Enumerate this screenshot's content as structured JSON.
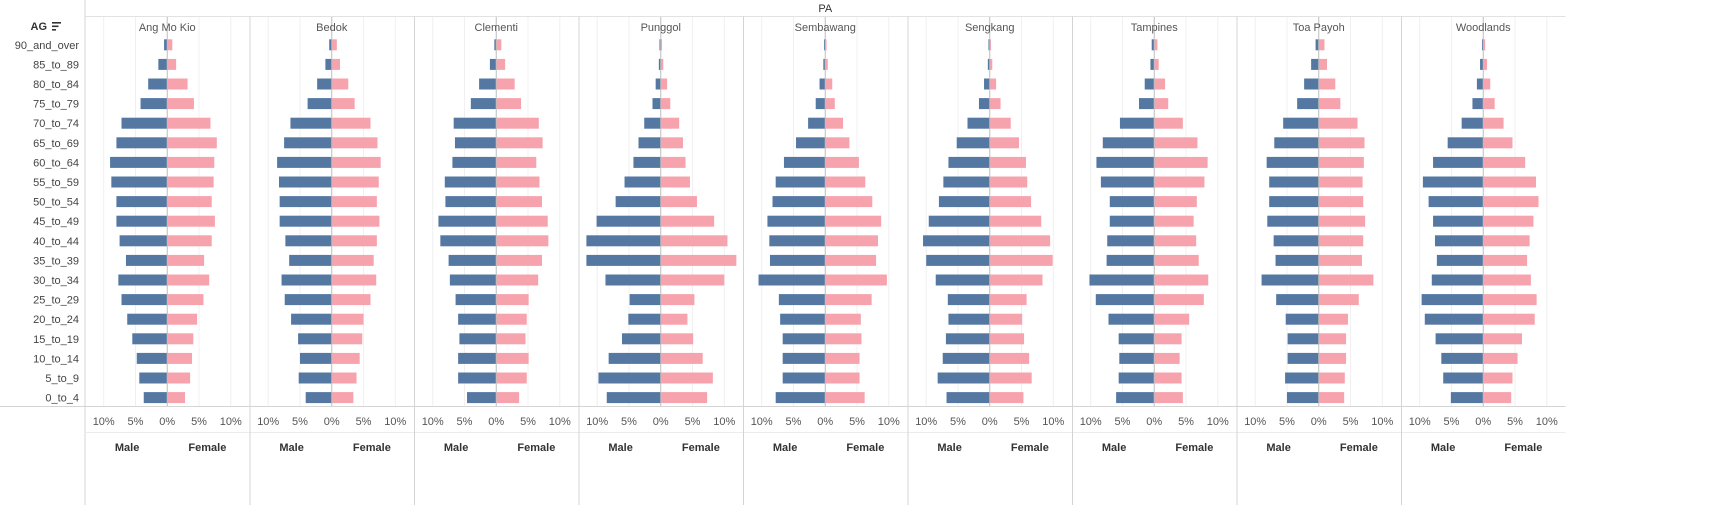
{
  "header": {
    "column_field": "PA",
    "row_field": "AG",
    "sort_icon": "sort-descending-icon"
  },
  "chart_data": {
    "type": "bar",
    "subtype": "population-pyramid",
    "axis_ticks": [
      "10%",
      "5%",
      "0%",
      "5%",
      "10%"
    ],
    "xlim_percent": [
      -12,
      12
    ],
    "side_labels": {
      "male": "Male",
      "female": "Female"
    },
    "colors": {
      "male": "#5578a3",
      "female": "#f7a3ad"
    },
    "age_groups": [
      "90_and_over",
      "85_to_89",
      "80_to_84",
      "75_to_79",
      "70_to_74",
      "65_to_69",
      "60_to_64",
      "55_to_59",
      "50_to_54",
      "45_to_49",
      "40_to_44",
      "35_to_39",
      "30_to_34",
      "25_to_29",
      "20_to_24",
      "15_to_19",
      "10_to_14",
      "5_to_9",
      "0_to_4"
    ],
    "panels": [
      {
        "pa": "Ang Mo Kio",
        "male": [
          0.5,
          1.4,
          3.0,
          4.2,
          7.2,
          8.0,
          9.0,
          8.8,
          8.0,
          8.0,
          7.5,
          6.5,
          7.7,
          7.2,
          6.3,
          5.5,
          4.8,
          4.4,
          3.7
        ],
        "female": [
          0.8,
          1.4,
          3.2,
          4.2,
          6.8,
          7.8,
          7.4,
          7.3,
          7.0,
          7.5,
          7.0,
          5.8,
          6.6,
          5.7,
          4.7,
          4.1,
          3.9,
          3.6,
          2.8
        ]
      },
      {
        "pa": "Bedok",
        "male": [
          0.4,
          1.0,
          2.3,
          3.8,
          6.5,
          7.5,
          8.6,
          8.3,
          8.2,
          8.2,
          7.3,
          6.7,
          7.9,
          7.4,
          6.4,
          5.3,
          5.0,
          5.2,
          4.1
        ],
        "female": [
          0.8,
          1.3,
          2.6,
          3.6,
          6.1,
          7.2,
          7.7,
          7.4,
          7.1,
          7.5,
          7.1,
          6.6,
          7.0,
          6.1,
          5.0,
          4.8,
          4.4,
          3.9,
          3.4
        ]
      },
      {
        "pa": "Clementi",
        "male": [
          0.3,
          1.0,
          2.7,
          4.0,
          6.7,
          6.5,
          6.9,
          8.1,
          8.0,
          9.1,
          8.8,
          7.5,
          7.3,
          6.4,
          6.0,
          5.8,
          6.0,
          6.0,
          4.6
        ],
        "female": [
          0.8,
          1.4,
          2.9,
          3.9,
          6.7,
          7.3,
          6.3,
          6.8,
          7.2,
          8.1,
          8.2,
          7.2,
          6.6,
          5.1,
          4.8,
          4.6,
          5.1,
          4.8,
          3.6
        ]
      },
      {
        "pa": "Punggol",
        "male": [
          0.2,
          0.3,
          0.8,
          1.3,
          2.6,
          3.5,
          4.3,
          5.7,
          7.1,
          10.1,
          11.7,
          11.7,
          8.7,
          4.9,
          5.1,
          6.1,
          8.2,
          9.8,
          8.5
        ],
        "female": [
          0.2,
          0.4,
          1.0,
          1.5,
          2.9,
          3.5,
          3.9,
          4.6,
          5.7,
          8.4,
          10.5,
          11.9,
          10.0,
          5.3,
          4.2,
          5.1,
          6.6,
          8.2,
          7.3
        ]
      },
      {
        "pa": "Sembawang",
        "male": [
          0.2,
          0.3,
          0.9,
          1.5,
          2.7,
          4.6,
          6.5,
          7.8,
          8.3,
          9.1,
          8.8,
          8.7,
          10.5,
          7.3,
          7.1,
          6.7,
          6.7,
          6.7,
          7.8
        ],
        "female": [
          0.2,
          0.4,
          1.1,
          1.5,
          2.8,
          3.8,
          5.3,
          6.3,
          7.4,
          8.8,
          8.3,
          8.0,
          9.7,
          7.3,
          5.6,
          5.7,
          5.4,
          5.4,
          6.2
        ]
      },
      {
        "pa": "Sengkang",
        "male": [
          0.2,
          0.3,
          0.9,
          1.7,
          3.5,
          5.2,
          6.5,
          7.3,
          8.0,
          9.6,
          10.5,
          10.0,
          8.5,
          6.6,
          6.5,
          6.9,
          7.4,
          8.2,
          6.8
        ],
        "female": [
          0.2,
          0.4,
          1.0,
          1.7,
          3.3,
          4.6,
          5.7,
          5.9,
          6.5,
          8.1,
          9.5,
          9.9,
          8.3,
          5.8,
          5.1,
          5.4,
          6.2,
          6.6,
          5.3
        ]
      },
      {
        "pa": "Tampines",
        "male": [
          0.4,
          0.6,
          1.5,
          2.4,
          5.4,
          8.1,
          9.1,
          8.4,
          7.0,
          7.0,
          7.4,
          7.5,
          10.2,
          9.2,
          7.2,
          5.6,
          5.5,
          5.6,
          6.0
        ],
        "female": [
          0.5,
          0.7,
          1.7,
          2.2,
          4.5,
          6.8,
          8.4,
          7.9,
          6.7,
          6.2,
          6.6,
          7.0,
          8.5,
          7.8,
          5.5,
          4.3,
          4.0,
          4.3,
          4.5
        ]
      },
      {
        "pa": "Toa Payoh",
        "male": [
          0.5,
          1.2,
          2.3,
          3.4,
          5.6,
          7.0,
          8.2,
          7.8,
          7.8,
          8.1,
          7.1,
          6.8,
          9.0,
          6.7,
          5.2,
          4.9,
          4.9,
          5.3,
          5.0
        ],
        "female": [
          0.9,
          1.3,
          2.6,
          3.4,
          6.1,
          7.2,
          7.1,
          6.9,
          7.0,
          7.3,
          7.0,
          6.8,
          8.6,
          6.3,
          4.6,
          4.3,
          4.3,
          4.1,
          4.0
        ]
      },
      {
        "pa": "Woodlands",
        "male": [
          0.2,
          0.5,
          1.0,
          1.7,
          3.4,
          5.6,
          7.9,
          9.5,
          8.6,
          7.9,
          7.6,
          7.3,
          8.1,
          9.7,
          9.2,
          7.5,
          6.6,
          6.3,
          5.1
        ],
        "female": [
          0.3,
          0.6,
          1.1,
          1.8,
          3.2,
          4.6,
          6.6,
          8.3,
          8.7,
          7.9,
          7.3,
          6.9,
          7.5,
          8.4,
          8.1,
          6.1,
          5.4,
          4.6,
          4.4
        ]
      }
    ]
  }
}
